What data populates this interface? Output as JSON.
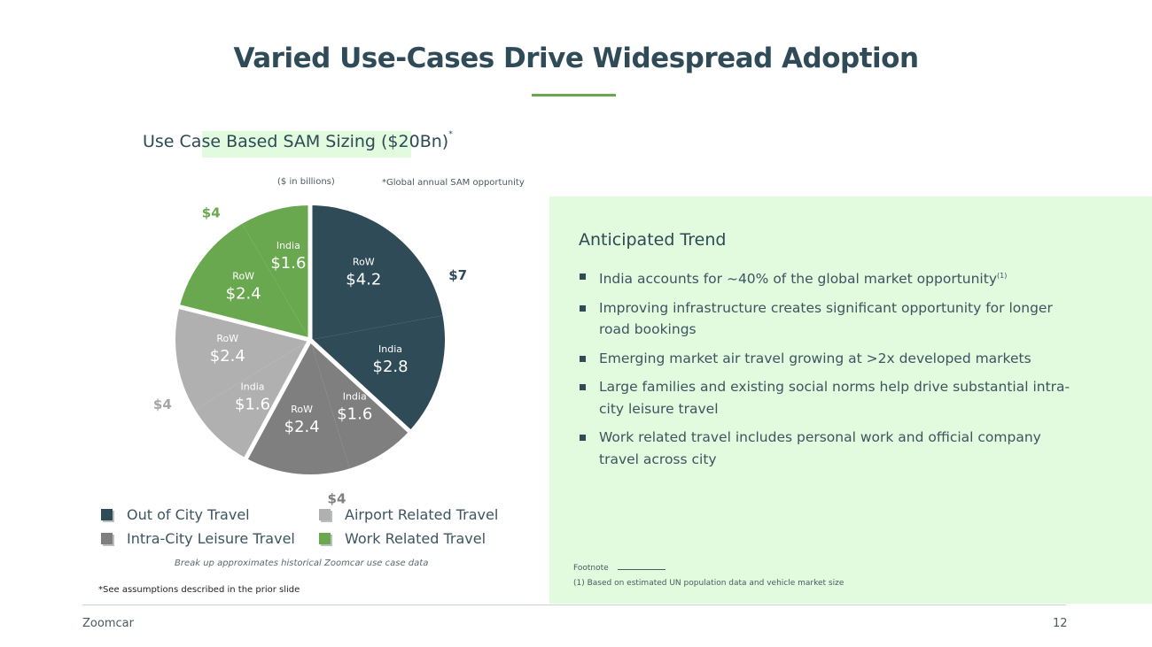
{
  "title": "Varied Use-Cases Drive Widespread Adoption",
  "chart_heading": "Use Case Based SAM Sizing ($20Bn)",
  "chart_heading_mark": "*",
  "units_note": "($ in billions)",
  "global_note": "*Global annual SAM opportunity",
  "chart_data": {
    "type": "pie",
    "title": "Use Case Based SAM Sizing ($20Bn)",
    "unit": "$ in billions",
    "start_angle_deg": 0,
    "slices": [
      {
        "category": "Out of City Travel",
        "region_label": "RoW",
        "value_text": "$4.2",
        "value": 4.2
      },
      {
        "category": "Out of City Travel",
        "region_label": "India",
        "value_text": "$2.8",
        "value": 2.8
      },
      {
        "category": "Intra-City Leisure Travel",
        "region_label": "India",
        "value_text": "$1.6",
        "value": 1.6
      },
      {
        "category": "Intra-City Leisure Travel",
        "region_label": "RoW",
        "value_text": "$2.4",
        "value": 2.4
      },
      {
        "category": "Airport Related Travel",
        "region_label": "India",
        "value_text": "$1.6",
        "value": 1.6
      },
      {
        "category": "Airport Related Travel",
        "region_label": "RoW",
        "value_text": "$2.4",
        "value": 2.4
      },
      {
        "category": "Work Related Travel",
        "region_label": "RoW",
        "value_text": "$2.4",
        "value": 2.4
      },
      {
        "category": "Work Related Travel",
        "region_label": "India",
        "value_text": "$1.6",
        "value": 1.6
      }
    ],
    "totals": [
      {
        "category": "Out of City Travel",
        "text": "$7",
        "value": 7
      },
      {
        "category": "Intra-City Leisure Travel",
        "text": "$4",
        "value": 4
      },
      {
        "category": "Airport Related Travel",
        "text": "$4",
        "value": 4
      },
      {
        "category": "Work Related Travel",
        "text": "$4",
        "value": 4
      }
    ],
    "colors": {
      "Out of City Travel": "#2e4b57",
      "Intra-City Leisure Travel": "#7f7f7f",
      "Airport Related Travel": "#b0b0b0",
      "Work Related Travel": "#6aa84f"
    },
    "total_colors": {
      "Out of City Travel": "#2e4b57",
      "Intra-City Leisure Travel": "#7f7f7f",
      "Airport Related Travel": "#a5a5a5",
      "Work Related Travel": "#6aa84f"
    },
    "legend": [
      "Out of City Travel",
      "Airport Related Travel",
      "Intra-City Leisure Travel",
      "Work Related Travel"
    ]
  },
  "breakup_note": "Break up approximates historical Zoomcar use case data",
  "assumptions_note": "*See assumptions described in the prior slide",
  "trend": {
    "title": "Anticipated Trend",
    "items": [
      {
        "text": "India accounts for ~40% of the global market opportunity",
        "sup": "(1)"
      },
      {
        "text": "Improving infrastructure creates significant opportunity for longer road bookings",
        "sup": ""
      },
      {
        "text": "Emerging market air travel growing at >2x developed markets",
        "sup": ""
      },
      {
        "text": "Large families and existing social norms help drive substantial intra-city leisure travel",
        "sup": ""
      },
      {
        "text": "Work related travel includes personal work and official company travel across city",
        "sup": ""
      }
    ]
  },
  "footnote_label": "Footnote",
  "footnote_text": "(1) Based on estimated UN population data and vehicle market size",
  "footer_brand": "Zoomcar",
  "page_number": "12"
}
